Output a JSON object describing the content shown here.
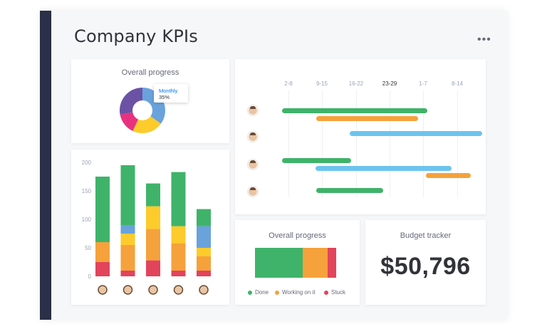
{
  "page": {
    "title": "Company KPIs",
    "more_label": "•••"
  },
  "colors": {
    "green": "#3fb36a",
    "orange": "#f5a23c",
    "yellow": "#fdcb2b",
    "red": "#e2445c",
    "blue": "#6aa2dc",
    "light_blue": "#6cc4ee",
    "purple": "#6b52a5",
    "pink": "#e8327f"
  },
  "overall_progress_pie": {
    "title": "Overall progress",
    "tooltip": {
      "label": "Monthly",
      "value": "35%"
    }
  },
  "gantt": {
    "ticks": [
      "2-8",
      "9-15",
      "16-22",
      "23-29",
      "1-7",
      "8-14"
    ],
    "active_tick": "23-29"
  },
  "overall_progress_bar": {
    "title": "Overall progress",
    "legend": [
      {
        "label": "Done",
        "color": "#3fb36a"
      },
      {
        "label": "Working on it",
        "color": "#f5a23c"
      },
      {
        "label": "Stuck",
        "color": "#e2445c"
      }
    ]
  },
  "budget": {
    "title": "Budget tracker",
    "value": "$50,796"
  },
  "chart_data": [
    {
      "type": "bar",
      "title": "",
      "ylim": [
        0,
        200
      ],
      "yticks": [
        "200",
        "150",
        "100",
        "50",
        "0"
      ],
      "categories": [
        "person-1",
        "person-2",
        "person-3",
        "person-4",
        "person-5"
      ],
      "series": [
        {
          "color": "#e2445c",
          "values": [
            25,
            10,
            28,
            10,
            10
          ]
        },
        {
          "color": "#f5a23c",
          "values": [
            35,
            45,
            55,
            48,
            25
          ]
        },
        {
          "color": "#fdcb2b",
          "values": [
            0,
            20,
            40,
            30,
            15
          ]
        },
        {
          "color": "#6aa2dc",
          "values": [
            0,
            15,
            0,
            0,
            38
          ]
        },
        {
          "color": "#3fb36a",
          "values": [
            115,
            105,
            40,
            95,
            30
          ]
        }
      ]
    },
    {
      "type": "pie",
      "title": "",
      "slices": [
        {
          "label": "Monthly",
          "value": 35,
          "color": "#6aa2dc"
        },
        {
          "value": 22,
          "color": "#fdcb2b"
        },
        {
          "value": 15,
          "color": "#e8327f"
        },
        {
          "value": 28,
          "color": "#6b52a5"
        }
      ]
    },
    {
      "type": "bar",
      "title": "",
      "orientation": "horizontal-stacked",
      "series": [
        {
          "name": "Done",
          "value": 56,
          "color": "#3fb36a"
        },
        {
          "name": "Working on it",
          "value": 30,
          "color": "#f5a23c"
        },
        {
          "name": "Stuck",
          "value": 10,
          "color": "#e2445c"
        }
      ]
    }
  ]
}
